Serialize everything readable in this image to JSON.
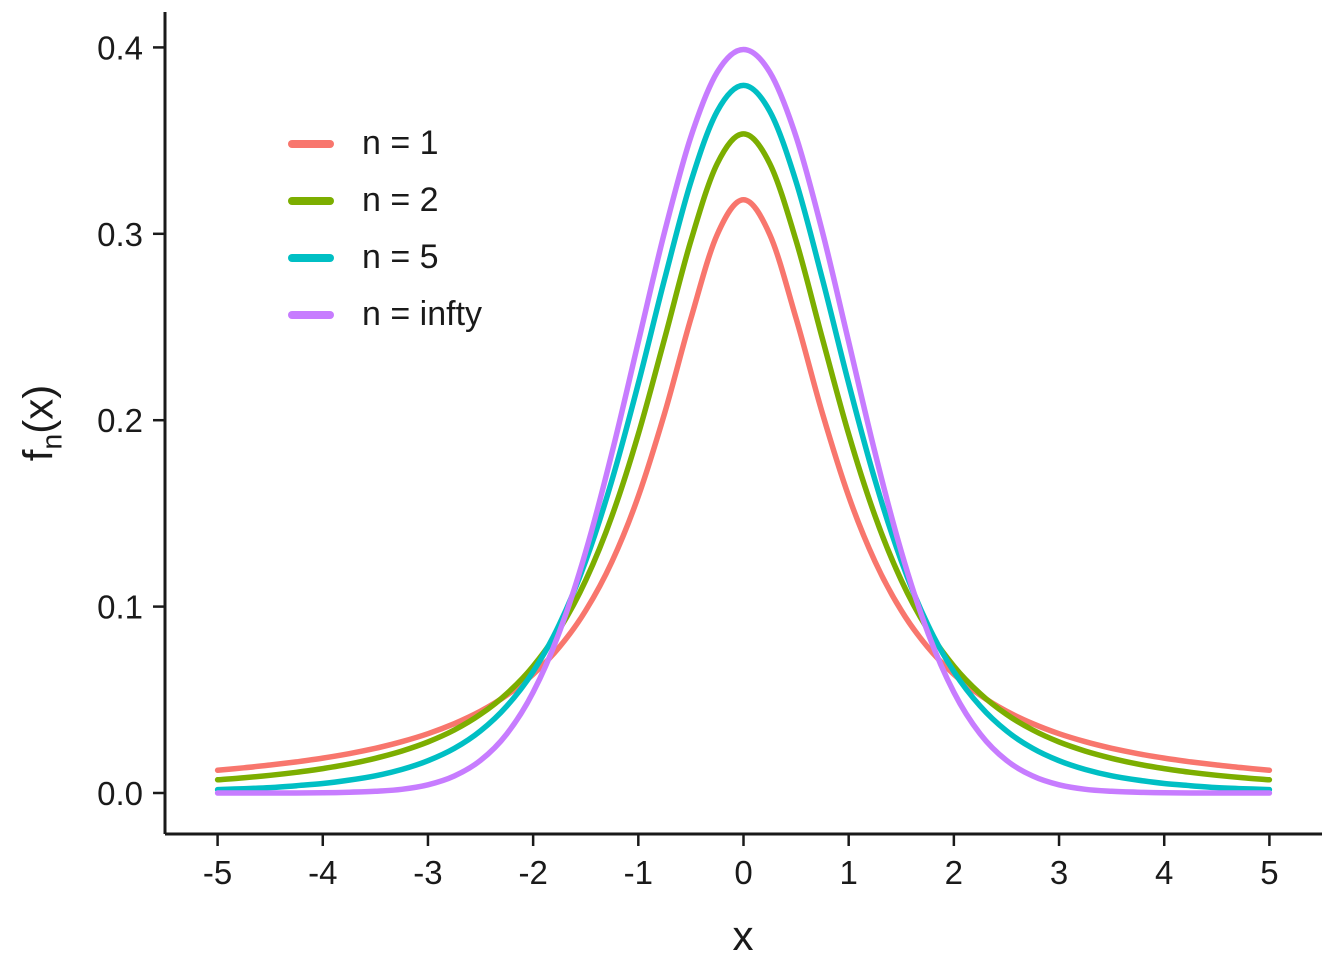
{
  "chart_data": {
    "type": "line",
    "title": "",
    "xlabel": "x",
    "ylabel_parts": {
      "pre": "f",
      "sub": "n",
      "post": "(x)"
    },
    "xlim": [
      -5.5,
      5.5
    ],
    "ylim": [
      -0.022,
      0.419
    ],
    "grid": false,
    "legend_position": "top-left-inside",
    "axis_color": "#1a1a1a",
    "tick_label_color": "#1a1a1a",
    "x_ticks": {
      "values": [
        -5,
        -4,
        -3,
        -2,
        -1,
        0,
        1,
        2,
        3,
        4,
        5
      ],
      "labels": [
        "-5",
        "-4",
        "-3",
        "-2",
        "-1",
        "0",
        "1",
        "2",
        "3",
        "4",
        "5"
      ]
    },
    "y_ticks": {
      "values": [
        0.0,
        0.1,
        0.2,
        0.3,
        0.4
      ],
      "labels": [
        "0.0",
        "0.1",
        "0.2",
        "0.3",
        "0.4"
      ]
    },
    "x": [
      -5,
      -4.75,
      -4.5,
      -4.25,
      -4,
      -3.75,
      -3.5,
      -3.25,
      -3,
      -2.75,
      -2.5,
      -2.25,
      -2,
      -1.75,
      -1.5,
      -1.25,
      -1,
      -0.75,
      -0.5,
      -0.25,
      0,
      0.25,
      0.5,
      0.75,
      1,
      1.25,
      1.5,
      1.75,
      2,
      2.25,
      2.5,
      2.75,
      3,
      3.25,
      3.5,
      3.75,
      4,
      4.25,
      4.5,
      4.75,
      5
    ],
    "series": [
      {
        "name": "n = 1",
        "color": "#F8766D",
        "values": [
          0.0122,
          0.0135,
          0.015,
          0.0167,
          0.0187,
          0.0211,
          0.024,
          0.0275,
          0.0318,
          0.0372,
          0.0439,
          0.0525,
          0.0637,
          0.0783,
          0.0979,
          0.1242,
          0.1592,
          0.2037,
          0.2546,
          0.2996,
          0.3183,
          0.2996,
          0.2546,
          0.2037,
          0.1592,
          0.1242,
          0.0979,
          0.0783,
          0.0637,
          0.0525,
          0.0439,
          0.0372,
          0.0318,
          0.0275,
          0.024,
          0.0211,
          0.0187,
          0.0167,
          0.015,
          0.0135,
          0.0122
        ]
      },
      {
        "name": "n = 2",
        "color": "#7CAE00",
        "values": [
          0.0071,
          0.0082,
          0.0095,
          0.0111,
          0.0131,
          0.0155,
          0.0186,
          0.0225,
          0.0274,
          0.0338,
          0.0422,
          0.0533,
          0.068,
          0.0878,
          0.1141,
          0.1487,
          0.1925,
          0.2438,
          0.2963,
          0.3376,
          0.3536,
          0.3376,
          0.2963,
          0.2438,
          0.1925,
          0.1487,
          0.1141,
          0.0878,
          0.068,
          0.0533,
          0.0422,
          0.0338,
          0.0274,
          0.0225,
          0.0186,
          0.0155,
          0.0131,
          0.0111,
          0.0095,
          0.0082,
          0.0071
        ]
      },
      {
        "name": "n = 5",
        "color": "#00BFC4",
        "values": [
          0.0018,
          0.0023,
          0.0029,
          0.0039,
          0.0051,
          0.0069,
          0.0092,
          0.0126,
          0.0173,
          0.0239,
          0.0333,
          0.0466,
          0.0651,
          0.0905,
          0.1245,
          0.1679,
          0.2197,
          0.2757,
          0.3279,
          0.3657,
          0.3796,
          0.3657,
          0.3279,
          0.2757,
          0.2197,
          0.1679,
          0.1245,
          0.0905,
          0.0651,
          0.0466,
          0.0333,
          0.0239,
          0.0173,
          0.0126,
          0.0092,
          0.0069,
          0.0051,
          0.0039,
          0.0029,
          0.0023,
          0.0018
        ]
      },
      {
        "name": "n = infty",
        "color": "#C77CFF",
        "values": [
          0.0,
          0.0,
          0.0,
          0.0,
          0.0001,
          0.0004,
          0.0009,
          0.002,
          0.0044,
          0.0091,
          0.0175,
          0.0317,
          0.054,
          0.0864,
          0.1295,
          0.1826,
          0.242,
          0.3011,
          0.3521,
          0.3867,
          0.3989,
          0.3867,
          0.3521,
          0.3011,
          0.242,
          0.1826,
          0.1295,
          0.0864,
          0.054,
          0.0317,
          0.0175,
          0.0091,
          0.0044,
          0.002,
          0.0009,
          0.0004,
          0.0001,
          0.0,
          0.0,
          0.0,
          0.0
        ]
      }
    ]
  }
}
